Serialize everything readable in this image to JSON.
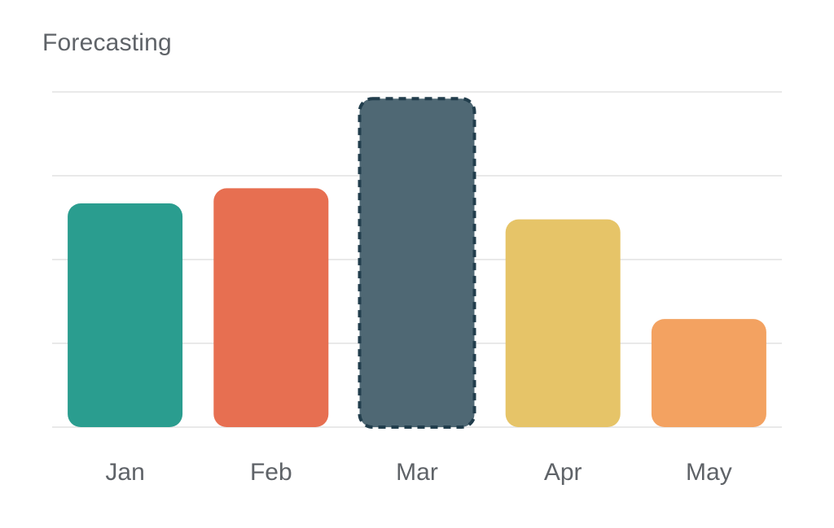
{
  "chart_data": {
    "type": "bar",
    "title": "Forecasting",
    "xlabel": "",
    "ylabel": "",
    "categories": [
      "Jan",
      "Feb",
      "Mar",
      "Apr",
      "May"
    ],
    "values": [
      26.7,
      28.5,
      39.2,
      24.8,
      12.9
    ],
    "colors": [
      "#2a9d8f",
      "#e76f51",
      "#4f6874",
      "#e6c468",
      "#f3a261"
    ],
    "highlighted_category": "Mar",
    "highlight_outline_color": "#213d4c",
    "gridline_color": "#e9e9e9",
    "ylim": [
      0,
      40
    ],
    "grid": true,
    "legend": "none",
    "y_tick_labels_visible": false
  }
}
